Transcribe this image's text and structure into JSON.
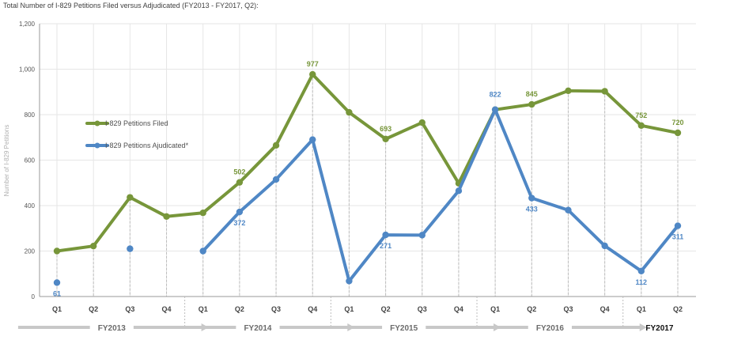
{
  "colors": {
    "filed": "#77963a",
    "adjudicated": "#4f87c5",
    "grid": "#e6e6e6",
    "axis": "#999999",
    "arrow": "#c8c8c8",
    "dashed": "#bdbdbd"
  },
  "chart_data": {
    "type": "line",
    "title": "Total Number of I-829 Petitions Filed versus Adjudicated (FY2013 - FY2017, Q2):",
    "ylabel": "Number of I-829 Petitions",
    "ylim": [
      0,
      1200
    ],
    "yticks": [
      "0",
      "200",
      "400",
      "600",
      "800",
      "1,000",
      "1,200"
    ],
    "yticks_values": [
      0,
      200,
      400,
      600,
      800,
      1000,
      1200
    ],
    "grid": true,
    "legend_position": "left-center",
    "categories": [
      "Q1",
      "Q2",
      "Q3",
      "Q4",
      "Q1",
      "Q2",
      "Q3",
      "Q4",
      "Q1",
      "Q2",
      "Q3",
      "Q4",
      "Q1",
      "Q2",
      "Q3",
      "Q4",
      "Q1",
      "Q2"
    ],
    "fiscal_years": [
      {
        "label": "FY2013",
        "quarters": 4,
        "current": false
      },
      {
        "label": "FY2014",
        "quarters": 4,
        "current": false
      },
      {
        "label": "FY2015",
        "quarters": 4,
        "current": false
      },
      {
        "label": "FY2016",
        "quarters": 4,
        "current": false
      },
      {
        "label": "FY2017",
        "quarters": 2,
        "current": true
      }
    ],
    "series": [
      {
        "name": "I-829 Petitions Filed",
        "color_key": "filed",
        "values": [
          200,
          222,
          436,
          352,
          368,
          502,
          665,
          977,
          810,
          693,
          765,
          498,
          822,
          845,
          905,
          903,
          752,
          720
        ],
        "labels": [
          "",
          "",
          "",
          "",
          "",
          "502",
          "",
          "977",
          "",
          "693",
          "",
          "",
          "",
          "845",
          "",
          "",
          "752",
          "720"
        ]
      },
      {
        "name": "I-829 Petitions Ajudicated*",
        "color_key": "adjudicated",
        "values": [
          61,
          null,
          210,
          null,
          200,
          372,
          515,
          690,
          68,
          271,
          270,
          465,
          822,
          433,
          380,
          223,
          112,
          311
        ],
        "labels": [
          "61",
          "",
          "",
          "",
          "",
          "372",
          "",
          "",
          "",
          "271",
          "",
          "",
          "822",
          "433",
          "",
          "",
          "112",
          "311"
        ]
      }
    ]
  }
}
